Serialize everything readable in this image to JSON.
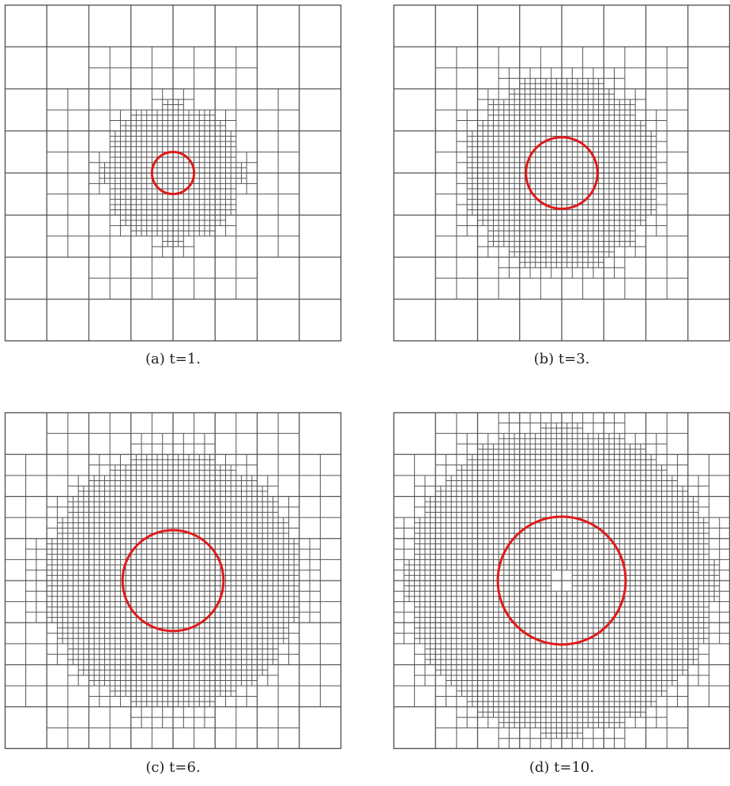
{
  "figure": {
    "colors": {
      "grid": "#555555",
      "interface": "#e01a1a",
      "background": "#ffffff"
    },
    "base_cells": 8,
    "panels": [
      {
        "id": "a",
        "caption": "(a)  t=1.",
        "t": 1,
        "interface_radius": 0.5,
        "refinement": {
          "level1_extent": 1.5,
          "level2_extent": 1.0,
          "level3_band": [
            0.0,
            1.0
          ],
          "level1_band": [
            0.0,
            2.0
          ]
        }
      },
      {
        "id": "b",
        "caption": "(b)  t=3.",
        "t": 3,
        "interface_radius": 0.85,
        "refinement": {
          "level1_band": [
            0.0,
            2.0
          ],
          "level2_band": [
            0.0,
            1.5
          ],
          "level3_band": [
            0.3,
            1.3
          ]
        }
      },
      {
        "id": "c",
        "caption": "(c)  t=6.",
        "t": 6,
        "interface_radius": 1.2,
        "refinement": {
          "level1_band": [
            0.0,
            3.0
          ],
          "level2_band": [
            0.3,
            1.9
          ],
          "level3_band": [
            0.6,
            1.7
          ]
        }
      },
      {
        "id": "d",
        "caption": "(d)  t=10.",
        "t": 10,
        "interface_radius": 1.52,
        "refinement": {
          "level1_band": [
            0.3,
            2.6
          ],
          "level2_band": [
            0.7,
            2.2
          ],
          "level3_band": [
            0.95,
            2.0
          ]
        }
      }
    ]
  }
}
